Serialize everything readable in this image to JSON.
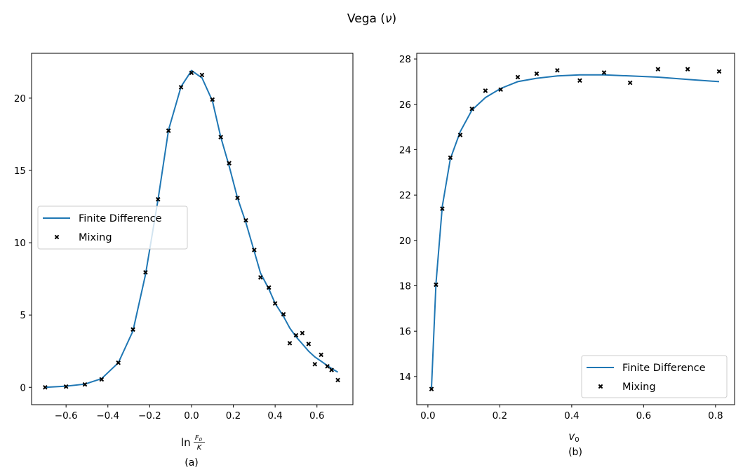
{
  "title": "Vega (ν)",
  "title_parts": {
    "text": "Vega (",
    "symbol": "ν",
    "close": ")"
  },
  "colors": {
    "line": "#1f77b4",
    "marker": "#000000"
  },
  "chart_data": [
    {
      "type": "line",
      "panel_label": "(a)",
      "xlabel": {
        "prefix": "ln",
        "numerator": "F",
        "numerator_sub": "0",
        "denominator": "K"
      },
      "ylabel": "",
      "xlim": [
        -0.765,
        0.772
      ],
      "ylim": [
        -1.2,
        23.1
      ],
      "xticks": [
        -0.6,
        -0.4,
        -0.2,
        0.0,
        0.2,
        0.4,
        0.6
      ],
      "xtick_labels": [
        "−0.6",
        "−0.4",
        "−0.2",
        "0.0",
        "0.2",
        "0.4",
        "0.6"
      ],
      "yticks": [
        0,
        5,
        10,
        15,
        20
      ],
      "ytick_labels": [
        "0",
        "5",
        "10",
        "15",
        "20"
      ],
      "grid": false,
      "legend": {
        "placement": "center-left",
        "entries": [
          "Finite Difference",
          "Mixing"
        ]
      },
      "series": [
        {
          "name": "Finite Difference",
          "kind": "line",
          "x": [
            -0.7,
            -0.6,
            -0.51,
            -0.43,
            -0.35,
            -0.28,
            -0.22,
            -0.16,
            -0.11,
            -0.05,
            0.0,
            0.05,
            0.1,
            0.14,
            0.18,
            0.22,
            0.26,
            0.3,
            0.33,
            0.37,
            0.4,
            0.44,
            0.47,
            0.5,
            0.53,
            0.56,
            0.59,
            0.62,
            0.65,
            0.67,
            0.7
          ],
          "y": [
            0.0,
            0.08,
            0.22,
            0.6,
            1.7,
            3.9,
            7.8,
            13.0,
            17.8,
            20.8,
            21.9,
            21.4,
            19.8,
            17.3,
            15.3,
            13.1,
            11.4,
            9.4,
            7.9,
            6.8,
            5.8,
            4.9,
            4.1,
            3.5,
            3.0,
            2.5,
            2.1,
            1.8,
            1.5,
            1.3,
            1.05
          ]
        },
        {
          "name": "Mixing",
          "kind": "scatter",
          "marker": "x",
          "x": [
            -0.7,
            -0.6,
            -0.51,
            -0.43,
            -0.35,
            -0.28,
            -0.22,
            -0.16,
            -0.11,
            -0.05,
            0.0,
            0.05,
            0.1,
            0.14,
            0.18,
            0.22,
            0.26,
            0.3,
            0.33,
            0.37,
            0.4,
            0.44,
            0.47,
            0.5,
            0.53,
            0.56,
            0.59,
            0.62,
            0.65,
            0.67,
            0.7
          ],
          "y": [
            0.0,
            0.05,
            0.2,
            0.55,
            1.7,
            4.0,
            7.95,
            13.0,
            17.75,
            20.75,
            21.75,
            21.6,
            19.9,
            17.3,
            15.5,
            13.1,
            11.55,
            9.5,
            7.6,
            6.9,
            5.8,
            5.05,
            3.05,
            3.6,
            3.75,
            3.0,
            1.6,
            2.25,
            1.45,
            1.2,
            0.5
          ]
        }
      ]
    },
    {
      "type": "line",
      "panel_label": "(b)",
      "xlabel": {
        "symbol": "v",
        "sub": "0"
      },
      "ylabel": "",
      "xlim": [
        -0.031,
        0.853
      ],
      "ylim": [
        12.76,
        28.25
      ],
      "xticks": [
        0.0,
        0.2,
        0.4,
        0.6,
        0.8
      ],
      "xtick_labels": [
        "0.0",
        "0.2",
        "0.4",
        "0.6",
        "0.8"
      ],
      "yticks": [
        14,
        16,
        18,
        20,
        22,
        24,
        26,
        28
      ],
      "ytick_labels": [
        "14",
        "16",
        "18",
        "20",
        "22",
        "24",
        "26",
        "28"
      ],
      "grid": false,
      "legend": {
        "placement": "lower-right",
        "entries": [
          "Finite Difference",
          "Mixing"
        ]
      },
      "series": [
        {
          "name": "Finite Difference",
          "kind": "line",
          "x": [
            0.01,
            0.0225,
            0.04,
            0.0625,
            0.09,
            0.1225,
            0.16,
            0.2025,
            0.25,
            0.3025,
            0.36,
            0.4225,
            0.49,
            0.5625,
            0.64,
            0.7225,
            0.81
          ],
          "y": [
            13.5,
            18.1,
            21.5,
            23.6,
            24.8,
            25.75,
            26.3,
            26.7,
            27.0,
            27.15,
            27.25,
            27.3,
            27.3,
            27.25,
            27.2,
            27.1,
            27.0
          ]
        },
        {
          "name": "Mixing",
          "kind": "scatter",
          "marker": "x",
          "x": [
            0.01,
            0.0225,
            0.04,
            0.0625,
            0.09,
            0.1225,
            0.16,
            0.2025,
            0.25,
            0.3025,
            0.36,
            0.4225,
            0.49,
            0.5625,
            0.64,
            0.7225,
            0.81
          ],
          "y": [
            13.45,
            18.05,
            21.4,
            23.65,
            24.65,
            25.8,
            26.6,
            26.65,
            27.2,
            27.35,
            27.5,
            27.05,
            27.4,
            26.95,
            27.55,
            27.55,
            27.45
          ]
        }
      ]
    }
  ]
}
